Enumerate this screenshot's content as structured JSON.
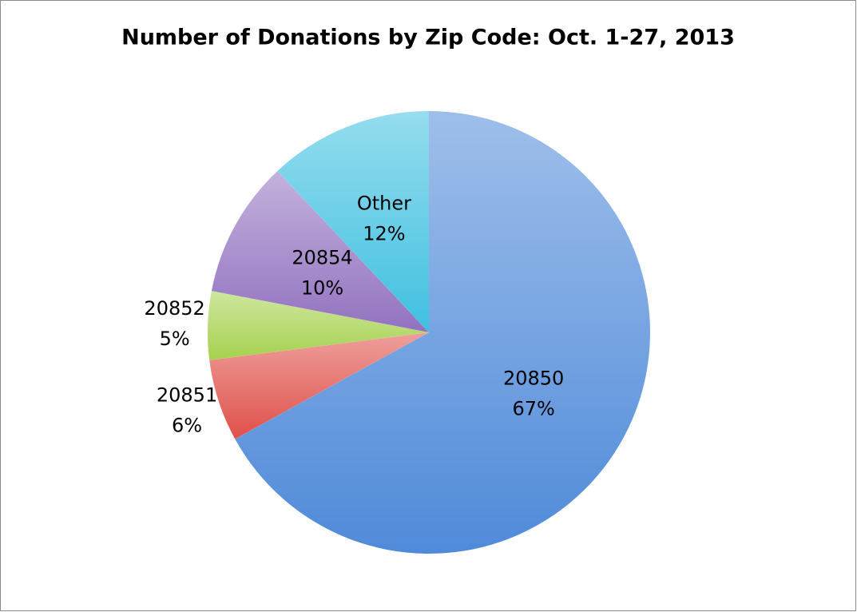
{
  "chart_data": {
    "type": "pie",
    "title": "Number of Donations by Zip Code: Oct. 1-27, 2013",
    "categories": [
      "20850",
      "20851",
      "20852",
      "20854",
      "Other"
    ],
    "values": [
      67,
      6,
      5,
      10,
      12
    ],
    "value_labels": [
      "67%",
      "6%",
      "5%",
      "10%",
      "12%"
    ],
    "colors": [
      "#4f8ad9",
      "#e0504a",
      "#a6d14f",
      "#9272c0",
      "#3fc0e0"
    ]
  }
}
